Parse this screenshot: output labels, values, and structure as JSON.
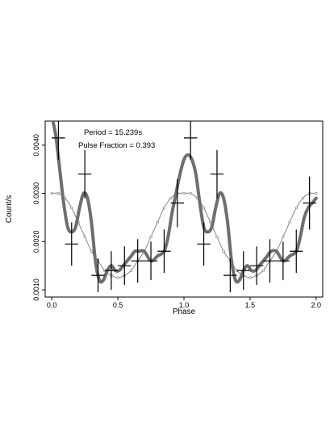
{
  "chart_data": {
    "type": "line",
    "xlabel": "Phase",
    "ylabel": "Count/s",
    "xlim": [
      -0.05,
      2.05
    ],
    "ylim": [
      0.00085,
      0.0045
    ],
    "x_ticks": [
      0.0,
      0.5,
      1.0,
      1.5,
      2.0
    ],
    "x_tick_labels": [
      "0.0",
      "0.5",
      "1.0",
      "1.5",
      "2.0"
    ],
    "y_ticks": [
      0.001,
      0.002,
      0.003,
      0.004
    ],
    "y_tick_labels": [
      "0.0010",
      "0.0020",
      "0.0030",
      "0.0040"
    ],
    "grid": false,
    "annotations": [
      "Period = 15.239s",
      "Pulse Fraction = 0.393"
    ],
    "colors": {
      "data": "#000000",
      "thick_curve": "#6e6e6e",
      "thin_curve": "#7a7a7a"
    },
    "series": [
      {
        "style": "errorbar",
        "x": [
          0.05,
          0.15,
          0.25,
          0.35,
          0.45,
          0.55,
          0.65,
          0.75,
          0.85,
          0.95,
          1.05,
          1.15,
          1.25,
          1.35,
          1.45,
          1.55,
          1.65,
          1.75,
          1.85,
          1.95
        ],
        "xerr": 0.05,
        "y": [
          0.00415,
          0.00195,
          0.0034,
          0.0013,
          0.0014,
          0.0015,
          0.0016,
          0.0016,
          0.0018,
          0.0028,
          0.00415,
          0.00195,
          0.0034,
          0.0013,
          0.0014,
          0.0015,
          0.0016,
          0.0016,
          0.0018,
          0.0028
        ],
        "yerr": [
          0.00045,
          0.00045,
          0.0005,
          0.00035,
          0.0004,
          0.0004,
          0.00045,
          0.0004,
          0.00045,
          0.0005,
          0.00045,
          0.00045,
          0.0005,
          0.00035,
          0.0004,
          0.0004,
          0.00045,
          0.0004,
          0.00045,
          0.00055
        ]
      },
      {
        "style": "thick-smooth",
        "x": [
          0.0,
          0.03,
          0.06,
          0.09,
          0.12,
          0.15,
          0.18,
          0.21,
          0.24,
          0.27,
          0.3,
          0.33,
          0.36,
          0.39,
          0.42,
          0.45,
          0.48,
          0.51,
          0.54,
          0.57,
          0.6,
          0.63,
          0.66,
          0.7,
          0.75,
          0.8,
          0.85,
          0.88,
          0.91,
          0.94,
          0.97,
          1.0,
          1.03,
          1.06,
          1.09,
          1.12,
          1.15,
          1.18,
          1.21,
          1.24,
          1.27,
          1.3,
          1.33,
          1.36,
          1.39,
          1.42,
          1.45,
          1.48,
          1.51,
          1.54,
          1.57,
          1.6,
          1.63,
          1.66,
          1.7,
          1.75,
          1.8,
          1.85,
          1.88,
          1.91,
          1.94,
          1.97,
          2.0
        ],
        "y": [
          0.0046,
          0.0042,
          0.0035,
          0.0028,
          0.0023,
          0.0022,
          0.0023,
          0.0027,
          0.003,
          0.0029,
          0.0024,
          0.0016,
          0.0012,
          0.0012,
          0.0014,
          0.0015,
          0.0014,
          0.0014,
          0.0015,
          0.0016,
          0.0017,
          0.0018,
          0.0018,
          0.0018,
          0.0016,
          0.0017,
          0.0018,
          0.0021,
          0.0026,
          0.003,
          0.0034,
          0.0037,
          0.0038,
          0.0037,
          0.0034,
          0.0028,
          0.0023,
          0.0022,
          0.0023,
          0.0027,
          0.003,
          0.0029,
          0.0024,
          0.0016,
          0.0012,
          0.0012,
          0.0014,
          0.0015,
          0.0014,
          0.0014,
          0.0015,
          0.0016,
          0.0017,
          0.0018,
          0.0018,
          0.0016,
          0.0017,
          0.0018,
          0.0021,
          0.0025,
          0.0027,
          0.0028,
          0.0029
        ]
      },
      {
        "style": "thin-sinusoid",
        "x": [
          0.0,
          0.05,
          0.1,
          0.15,
          0.2,
          0.25,
          0.3,
          0.35,
          0.4,
          0.45,
          0.5,
          0.55,
          0.6,
          0.65,
          0.7,
          0.75,
          0.8,
          0.85,
          0.9,
          0.95,
          1.0,
          1.05,
          1.1,
          1.15,
          1.2,
          1.25,
          1.3,
          1.35,
          1.4,
          1.45,
          1.5,
          1.55,
          1.6,
          1.65,
          1.7,
          1.75,
          1.8,
          1.85,
          1.9,
          1.95,
          2.0
        ],
        "y": [
          0.003,
          0.003,
          0.0029,
          0.0027,
          0.0024,
          0.0021,
          0.0018,
          0.0016,
          0.0014,
          0.0013,
          0.00125,
          0.0013,
          0.0014,
          0.0016,
          0.0018,
          0.0021,
          0.0024,
          0.0027,
          0.0029,
          0.003,
          0.003,
          0.003,
          0.0029,
          0.0027,
          0.0024,
          0.0021,
          0.0018,
          0.0016,
          0.0014,
          0.0013,
          0.00125,
          0.0013,
          0.0014,
          0.0016,
          0.0018,
          0.0021,
          0.0024,
          0.0027,
          0.0029,
          0.003,
          0.003
        ]
      }
    ]
  }
}
